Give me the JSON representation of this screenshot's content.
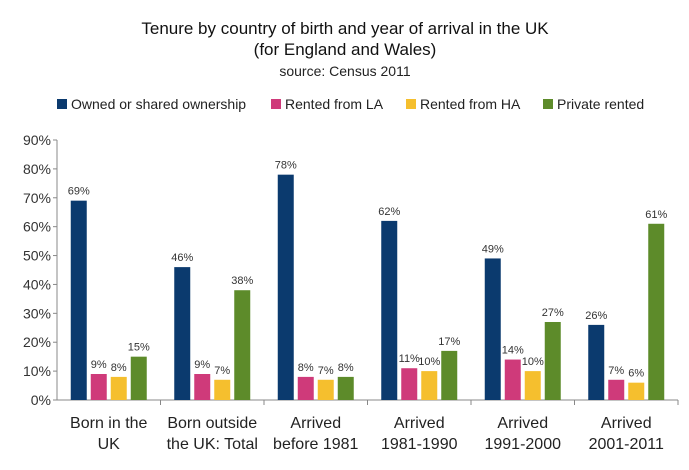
{
  "chart_data": {
    "type": "bar",
    "title": "Tenure by country of birth and year of arrival in the UK",
    "title_line2": "(for England and Wales)",
    "subtitle": "source: Census 2011",
    "legend_position": "top",
    "grid": false,
    "ylim": [
      0,
      90
    ],
    "y_ticks": [
      "0%",
      "10%",
      "20%",
      "30%",
      "40%",
      "50%",
      "60%",
      "70%",
      "80%",
      "90%"
    ],
    "y_tick_values": [
      0,
      10,
      20,
      30,
      40,
      50,
      60,
      70,
      80,
      90
    ],
    "categories": [
      [
        "Born in the",
        "UK"
      ],
      [
        "Born outside",
        "the UK: Total"
      ],
      [
        "Arrived",
        "before 1981"
      ],
      [
        "Arrived",
        "1981-1990"
      ],
      [
        "Arrived",
        "1991-2000"
      ],
      [
        "Arrived",
        "2001-2011"
      ]
    ],
    "series": [
      {
        "name": "Owned or shared ownership",
        "color": "#0b3a6e",
        "values": [
          69,
          46,
          78,
          62,
          49,
          26
        ],
        "labels": [
          "69%",
          "46%",
          "78%",
          "62%",
          "49%",
          "26%"
        ]
      },
      {
        "name": "Rented from LA",
        "color": "#cf3a7a",
        "values": [
          9,
          9,
          8,
          11,
          14,
          7
        ],
        "labels": [
          "9%",
          "9%",
          "8%",
          "11%",
          "14%",
          "7%"
        ]
      },
      {
        "name": "Rented from HA",
        "color": "#f5bf2e",
        "values": [
          8,
          7,
          7,
          10,
          10,
          6
        ],
        "labels": [
          "8%",
          "7%",
          "7%",
          "10%",
          "10%",
          "6%"
        ]
      },
      {
        "name": "Private rented",
        "color": "#5d8b2a",
        "values": [
          15,
          38,
          8,
          17,
          27,
          61
        ],
        "labels": [
          "15%",
          "38%",
          "8%",
          "17%",
          "27%",
          "61%"
        ]
      }
    ]
  }
}
